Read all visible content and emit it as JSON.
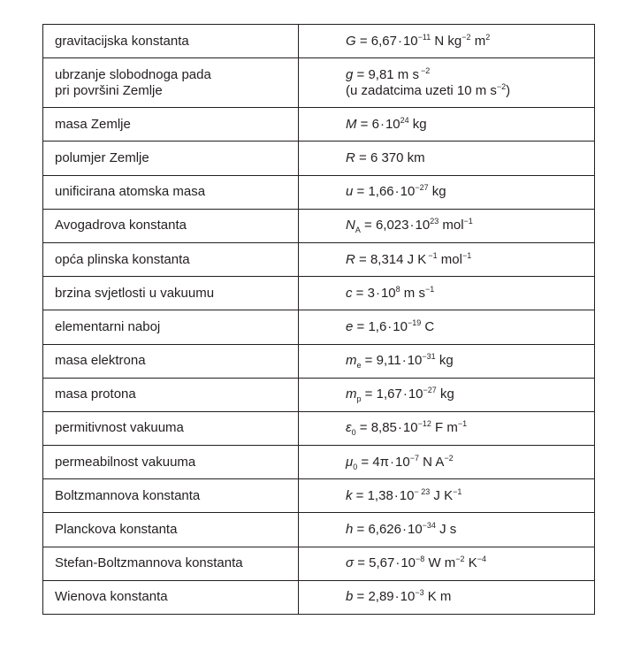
{
  "rows": [
    {
      "name": "gravitacijska konstanta",
      "sym": "G",
      "sub": "",
      "eq": " = 6,67",
      "dot": "·",
      "base": "10",
      "exp": "−11",
      "unit": " N kg",
      "unit_exp": "−2",
      "unit2": " m",
      "unit2_exp": "2",
      "unit3": "",
      "unit3_exp": ""
    },
    {
      "name": "ubrzanje slobodnoga pada",
      "name2": "pri površini Zemlje",
      "sym": "g",
      "sub": "",
      "eq": " = 9,81 m s",
      "dot": "",
      "base": "",
      "exp": "−2",
      "unit": "",
      "unit_exp": "",
      "unit2": "",
      "unit2_exp": "",
      "unit3": "",
      "unit3_exp": "",
      "line2": "(u zadatcima uzeti 10 m s",
      "line2_exp": "−2",
      "line2_end": ")"
    },
    {
      "name": "masa Zemlje",
      "sym": "M",
      "sub": "",
      "eq": " = 6",
      "dot": "·",
      "base": "10",
      "exp": "24",
      "unit": " kg",
      "unit_exp": "",
      "unit2": "",
      "unit2_exp": "",
      "unit3": "",
      "unit3_exp": ""
    },
    {
      "name": "polumjer Zemlje",
      "sym": "R",
      "sub": "",
      "eq": " = 6 370 km",
      "dot": "",
      "base": "",
      "exp": "",
      "unit": "",
      "unit_exp": "",
      "unit2": "",
      "unit2_exp": "",
      "unit3": "",
      "unit3_exp": ""
    },
    {
      "name": "unificirana atomska masa",
      "sym": "u",
      "sub": "",
      "eq": " = 1,66",
      "dot": "·",
      "base": "10",
      "exp": "−27",
      "unit": " kg",
      "unit_exp": "",
      "unit2": "",
      "unit2_exp": "",
      "unit3": "",
      "unit3_exp": ""
    },
    {
      "name": "Avogadrova konstanta",
      "sym": "N",
      "sub": "A",
      "eq": " = 6,023",
      "dot": "·",
      "base": "10",
      "exp": "23",
      "unit": " mol",
      "unit_exp": "−1",
      "unit2": "",
      "unit2_exp": "",
      "unit3": "",
      "unit3_exp": ""
    },
    {
      "name": "opća plinska konstanta",
      "sym": "R",
      "sub": "",
      "eq": " = 8,314 J K",
      "dot": "",
      "base": "",
      "exp": "−1",
      "unit": " mol",
      "unit_exp": "−1",
      "unit2": "",
      "unit2_exp": "",
      "unit3": "",
      "unit3_exp": ""
    },
    {
      "name": "brzina svjetlosti u vakuumu",
      "sym": "c",
      "sub": "",
      "eq": " = 3",
      "dot": "·",
      "base": "10",
      "exp": "8",
      "unit": " m s",
      "unit_exp": "−1",
      "unit2": "",
      "unit2_exp": "",
      "unit3": "",
      "unit3_exp": ""
    },
    {
      "name": "elementarni naboj",
      "sym": "e",
      "sub": "",
      "eq": " = 1,6",
      "dot": "·",
      "base": "10",
      "exp": "−19",
      "unit": " C",
      "unit_exp": "",
      "unit2": "",
      "unit2_exp": "",
      "unit3": "",
      "unit3_exp": ""
    },
    {
      "name": "masa elektrona",
      "sym": "m",
      "sub": "e",
      "eq": " = 9,11",
      "dot": "·",
      "base": "10",
      "exp": "−31",
      "unit": " kg",
      "unit_exp": "",
      "unit2": "",
      "unit2_exp": "",
      "unit3": "",
      "unit3_exp": ""
    },
    {
      "name": "masa protona",
      "sym": "m",
      "sub": "p",
      "eq": " = 1,67",
      "dot": "·",
      "base": "10",
      "exp": "−27",
      "unit": " kg",
      "unit_exp": "",
      "unit2": "",
      "unit2_exp": "",
      "unit3": "",
      "unit3_exp": ""
    },
    {
      "name": "permitivnost vakuuma",
      "sym": "ε",
      "sub": "0",
      "eq": " = 8,85",
      "dot": "·",
      "base": "10",
      "exp": "−12",
      "unit": " F m",
      "unit_exp": "−1",
      "unit2": "",
      "unit2_exp": "",
      "unit3": "",
      "unit3_exp": ""
    },
    {
      "name": "permeabilnost vakuuma",
      "sym": "μ",
      "sub": "0",
      "eq": " = 4π",
      "dot": "·",
      "base": "10",
      "exp": "−7",
      "unit": " N A",
      "unit_exp": "−2",
      "unit2": "",
      "unit2_exp": "",
      "unit3": "",
      "unit3_exp": ""
    },
    {
      "name": "Boltzmannova konstanta",
      "sym": "k",
      "sub": "",
      "eq": " = 1,38",
      "dot": "·",
      "base": "10",
      "exp": "− 23",
      "unit": " J K",
      "unit_exp": "−1",
      "unit2": "",
      "unit2_exp": "",
      "unit3": "",
      "unit3_exp": ""
    },
    {
      "name": "Planckova konstanta",
      "sym": "h",
      "sub": "",
      "eq": " = 6,626",
      "dot": "·",
      "base": "10",
      "exp": "−34",
      "unit": " J s",
      "unit_exp": "",
      "unit2": "",
      "unit2_exp": "",
      "unit3": "",
      "unit3_exp": ""
    },
    {
      "name": "Stefan-Boltzmannova konstanta",
      "sym": "σ",
      "sub": "",
      "eq": " = 5,67",
      "dot": "·",
      "base": "10",
      "exp": "−8",
      "unit": " W m",
      "unit_exp": "−2",
      "unit2": " K",
      "unit2_exp": "−4",
      "unit3": "",
      "unit3_exp": ""
    },
    {
      "name": "Wienova konstanta",
      "sym": "b",
      "sub": "",
      "eq": " = 2,89",
      "dot": "·",
      "base": "10",
      "exp": "−3",
      "unit": " K m",
      "unit_exp": "",
      "unit2": "",
      "unit2_exp": "",
      "unit3": "",
      "unit3_exp": ""
    }
  ]
}
